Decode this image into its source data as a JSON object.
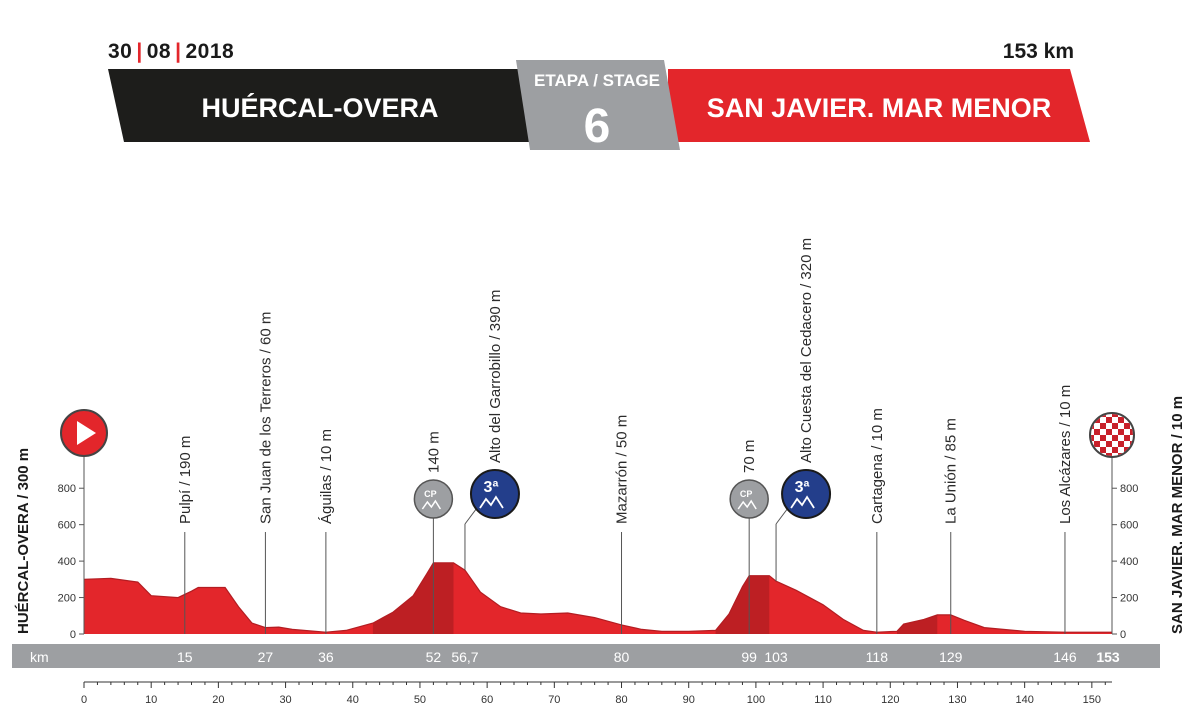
{
  "header": {
    "date_day": "30",
    "date_month": "08",
    "date_year": "2018",
    "distance": "153 km",
    "start": "HUÉRCAL-OVERA",
    "stage_label": "ETAPA / STAGE",
    "stage_number": "6",
    "finish": "SAN JAVIER. MAR MENOR",
    "colors": {
      "dark": "#1d1d1b",
      "red": "#e3262b",
      "grey": "#9d9fa2"
    }
  },
  "profile": {
    "start_label": "HUÉRCAL-OVERA / 300 m",
    "finish_label": "SAN JAVIER. MAR MENOR / 10 m",
    "km_label": "km",
    "start_icon": "play-icon",
    "finish_icon": "checkered-flag-icon"
  },
  "chart_data": {
    "type": "area",
    "xlim": [
      0,
      153
    ],
    "ylim": [
      0,
      900
    ],
    "yticks": [
      0,
      200,
      400,
      600,
      800
    ],
    "xticks": [
      0,
      10,
      20,
      30,
      40,
      50,
      60,
      70,
      80,
      90,
      100,
      110,
      120,
      130,
      140,
      150
    ],
    "elevation": [
      [
        0,
        300
      ],
      [
        4,
        305
      ],
      [
        8,
        285
      ],
      [
        10,
        210
      ],
      [
        14,
        200
      ],
      [
        16,
        235
      ],
      [
        17,
        255
      ],
      [
        21,
        255
      ],
      [
        23,
        150
      ],
      [
        25,
        60
      ],
      [
        27,
        35
      ],
      [
        29,
        38
      ],
      [
        31,
        25
      ],
      [
        36,
        10
      ],
      [
        39,
        20
      ],
      [
        43,
        60
      ],
      [
        46,
        120
      ],
      [
        49,
        210
      ],
      [
        51,
        330
      ],
      [
        52,
        390
      ],
      [
        55,
        390
      ],
      [
        56.7,
        350
      ],
      [
        59,
        230
      ],
      [
        62,
        150
      ],
      [
        65,
        115
      ],
      [
        68,
        110
      ],
      [
        72,
        115
      ],
      [
        76,
        90
      ],
      [
        80,
        50
      ],
      [
        83,
        25
      ],
      [
        86,
        15
      ],
      [
        90,
        15
      ],
      [
        94,
        20
      ],
      [
        96,
        110
      ],
      [
        98,
        260
      ],
      [
        99,
        320
      ],
      [
        102,
        320
      ],
      [
        103,
        290
      ],
      [
        106,
        240
      ],
      [
        110,
        160
      ],
      [
        113,
        80
      ],
      [
        116,
        20
      ],
      [
        118,
        10
      ],
      [
        121,
        15
      ],
      [
        122,
        55
      ],
      [
        125,
        80
      ],
      [
        127,
        105
      ],
      [
        129,
        105
      ],
      [
        131,
        75
      ],
      [
        134,
        35
      ],
      [
        140,
        15
      ],
      [
        146,
        10
      ],
      [
        153,
        10
      ]
    ],
    "km_points": [
      15,
      27,
      36,
      52,
      56.7,
      80,
      99,
      103,
      118,
      129,
      146,
      153
    ],
    "km_point_labels": [
      "15",
      "27",
      "36",
      "52",
      "56,7",
      "80",
      "99",
      "103",
      "118",
      "129",
      "146",
      "153"
    ],
    "waypoints": [
      {
        "km": 15,
        "label": "Pulpí / 190 m"
      },
      {
        "km": 27,
        "label": "San Juan de los Terreros / 60 m"
      },
      {
        "km": 36,
        "label": "Águilas / 10 m"
      },
      {
        "km": 52,
        "label": "140 m",
        "badge": "CP"
      },
      {
        "km": 56.7,
        "label": "Alto del Garrobillo / 390 m",
        "badge": "3ª"
      },
      {
        "km": 80,
        "label": "Mazarrón / 50 m"
      },
      {
        "km": 99,
        "label": "70 m",
        "badge": "CP"
      },
      {
        "km": 103,
        "label": "Alto Cuesta del Cedacero / 320 m",
        "badge": "3ª"
      },
      {
        "km": 118,
        "label": "Cartagena / 10 m"
      },
      {
        "km": 129,
        "label": "La Unión / 85 m"
      },
      {
        "km": 146,
        "label": "Los Alcázares / 10 m"
      }
    ],
    "badge_text": {
      "cp": "CP",
      "cat": "3ª"
    }
  }
}
